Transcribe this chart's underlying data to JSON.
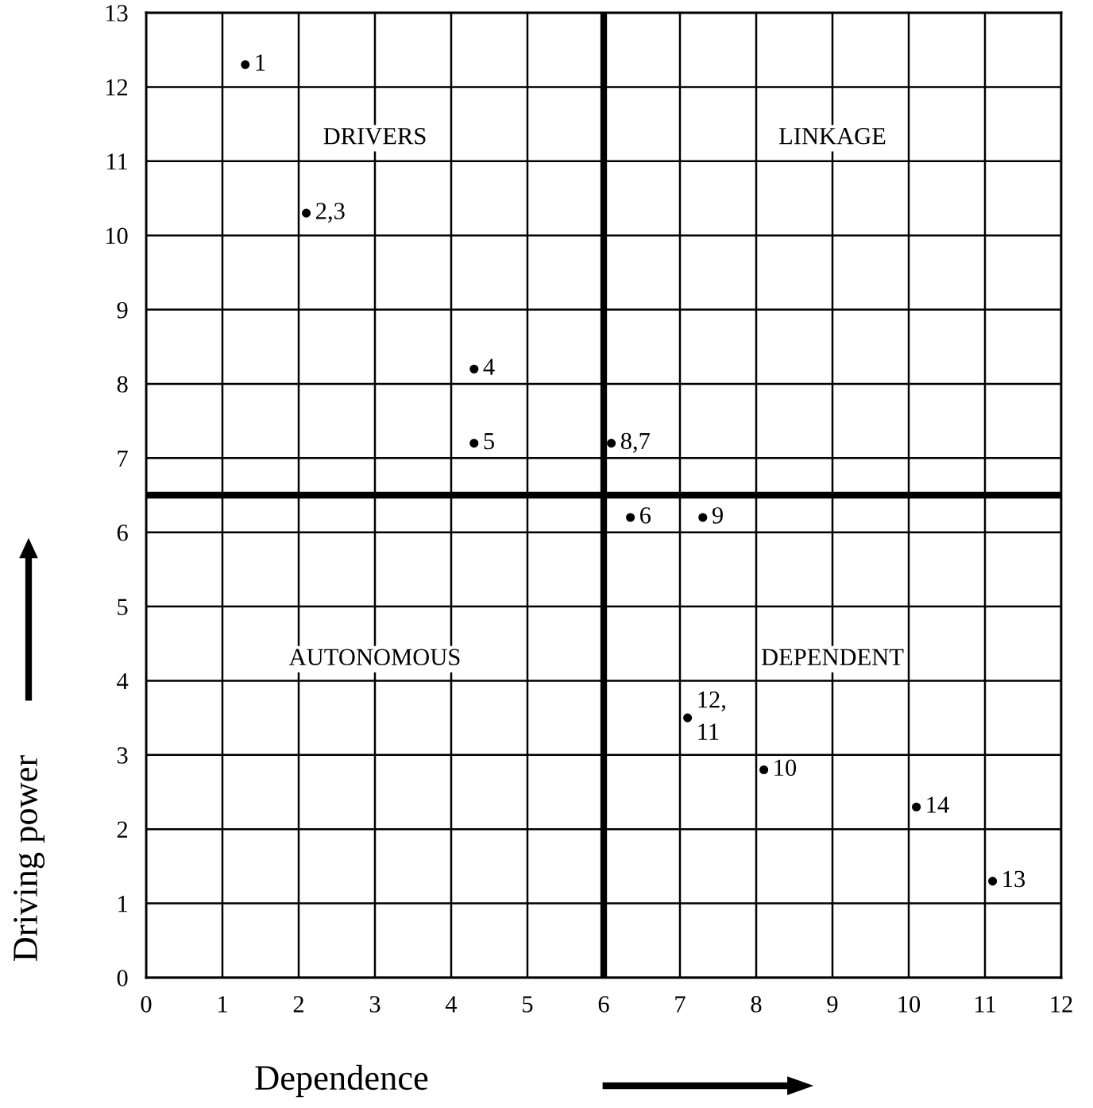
{
  "chart_data": {
    "type": "scatter",
    "xlabel": "Dependence",
    "ylabel": "Driving power",
    "xlim": [
      0,
      12
    ],
    "ylim": [
      0,
      13
    ],
    "xticks": [
      0,
      1,
      2,
      3,
      4,
      5,
      6,
      7,
      8,
      9,
      10,
      11,
      12
    ],
    "yticks": [
      0,
      1,
      2,
      3,
      4,
      5,
      6,
      7,
      8,
      9,
      10,
      11,
      12,
      13
    ],
    "grid": true,
    "marker": "circle",
    "series": [
      {
        "color": "#000000",
        "x": [
          1.3,
          2.1,
          4.3,
          4.3,
          6.1,
          6.35,
          7.3,
          7.1,
          8.1,
          10.1,
          11.1
        ],
        "values": [
          12.3,
          10.3,
          8.2,
          7.2,
          7.2,
          6.2,
          6.2,
          3.5,
          2.8,
          2.3,
          1.3
        ]
      }
    ],
    "ref_lines": [
      {
        "axis": "x",
        "value": 6,
        "color": "#000000"
      },
      {
        "axis": "y",
        "value": 6.5,
        "color": "#000000"
      }
    ],
    "annotations": [
      "DRIVERS",
      "LINKAGE",
      "AUTONOMOUS",
      "DEPENDENT",
      {
        "text": "1",
        "x": 1.3,
        "y": 12.3
      },
      {
        "text": "2,3",
        "x": 2.1,
        "y": 10.3
      },
      {
        "text": "4",
        "x": 4.3,
        "y": 8.2
      },
      {
        "text": "5",
        "x": 4.3,
        "y": 7.2
      },
      {
        "text": "8,7",
        "x": 6.1,
        "y": 7.2
      },
      {
        "text": "6",
        "x": 6.35,
        "y": 6.2
      },
      {
        "text": "9",
        "x": 7.3,
        "y": 6.2
      },
      {
        "text": "12,\n11",
        "x": 7.1,
        "y": 3.5
      },
      {
        "text": "10",
        "x": 8.1,
        "y": 2.8
      },
      {
        "text": "14",
        "x": 10.1,
        "y": 2.3
      },
      {
        "text": "13",
        "x": 11.1,
        "y": 1.3
      }
    ]
  }
}
